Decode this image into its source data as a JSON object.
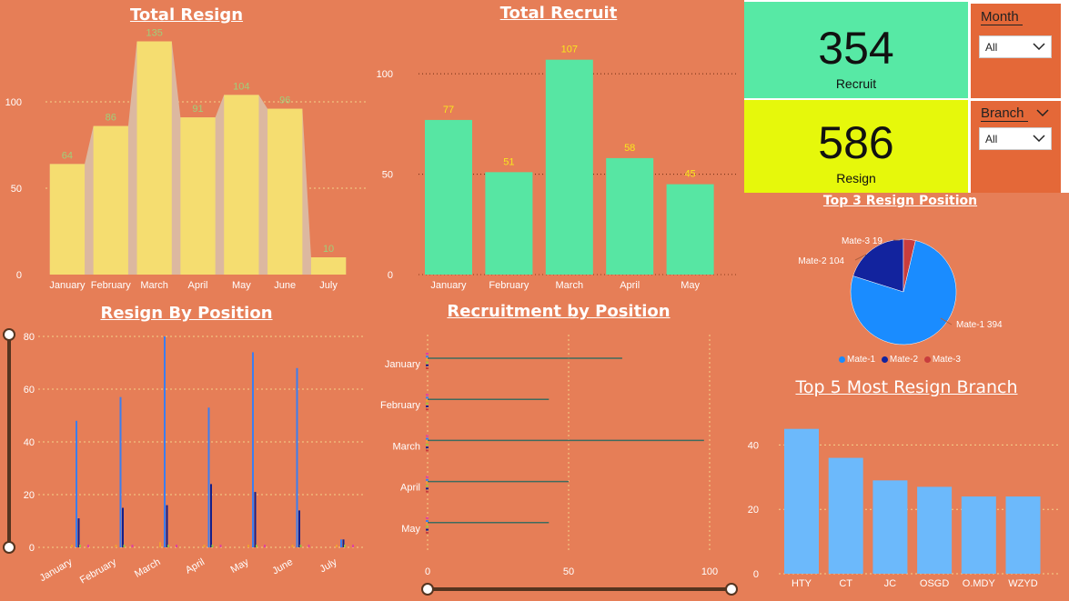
{
  "resign_title": "Total Resign",
  "recruit_title": "Total Recruit",
  "resign_position_title": "Resign By Position",
  "recruit_position_title": "Recruitment by Position",
  "pie_title": "Top 3 Resign Position",
  "branch_title": "Top 5 Most Resign Branch",
  "kpi": {
    "recruit_value": "354",
    "recruit_label": "Recruit",
    "resign_value": "586",
    "resign_label": "Resign"
  },
  "slicers": {
    "month_label": "Month",
    "month_value": "All",
    "branch_label": "Branch",
    "branch_value": "All"
  },
  "colors": {
    "panel": "#e67e57",
    "resign_bar": "#f5dd70",
    "recruit_bar": "#57e6a3",
    "branch_bar": "#6cb9fb",
    "kpi_recruit": "#57e9a5",
    "kpi_resign": "#e6f80b"
  },
  "chart_data": [
    {
      "id": "total_resign",
      "type": "bar",
      "title": "Total Resign",
      "categories": [
        "January",
        "February",
        "March",
        "April",
        "May",
        "June",
        "July"
      ],
      "values": [
        64,
        86,
        135,
        91,
        104,
        96,
        10
      ],
      "yticks": [
        0,
        50,
        100
      ],
      "ylim": [
        0,
        140
      ],
      "grid": true
    },
    {
      "id": "total_recruit",
      "type": "bar",
      "title": "Total Recruit",
      "categories": [
        "January",
        "February",
        "March",
        "April",
        "May"
      ],
      "values": [
        77,
        51,
        107,
        58,
        45
      ],
      "yticks": [
        0,
        50,
        100
      ],
      "ylim": [
        0,
        115
      ],
      "grid": true
    },
    {
      "id": "resign_by_position",
      "type": "bar",
      "title": "Resign By Position",
      "categories": [
        "January",
        "February",
        "March",
        "April",
        "May",
        "June",
        "July"
      ],
      "yticks": [
        0,
        20,
        40,
        60,
        80
      ],
      "ylim": [
        0,
        80
      ],
      "series": [
        {
          "values": [
            48,
            57,
            80,
            53,
            74,
            68,
            3
          ],
          "color": "#3c7ef0"
        },
        {
          "values": [
            11,
            15,
            16,
            24,
            21,
            14,
            3
          ],
          "color": "#15208a"
        },
        {
          "values": [
            1,
            1,
            2,
            1,
            1,
            1,
            1
          ],
          "color": "#f0a030"
        },
        {
          "values": [
            1,
            1,
            1,
            1,
            1,
            1,
            1
          ],
          "color": "#a0c040"
        },
        {
          "values": [
            1,
            1,
            1,
            1,
            1,
            1,
            1
          ],
          "color": "#e040a0"
        }
      ]
    },
    {
      "id": "recruitment_by_position",
      "type": "bar",
      "orientation": "horizontal",
      "title": "Recruitment by Position",
      "categories": [
        "January",
        "February",
        "March",
        "April",
        "May"
      ],
      "values": [
        69,
        43,
        98,
        50,
        43
      ],
      "xticks": [
        0,
        50,
        100
      ],
      "xlim": [
        0,
        100
      ]
    },
    {
      "id": "top3_resign_position",
      "type": "pie",
      "title": "Top 3 Resign Position",
      "labels": [
        "Mate-1",
        "Mate-2",
        "Mate-3"
      ],
      "values": [
        394,
        104,
        19
      ],
      "colors": [
        "#1a8cff",
        "#12239e",
        "#c83d3d"
      ],
      "legend": "bottom"
    },
    {
      "id": "top5_resign_branch",
      "type": "bar",
      "title": "Top 5 Most Resign Branch",
      "categories": [
        "HTY",
        "CT",
        "JC",
        "OSGD",
        "O.MDY",
        "WZYD"
      ],
      "values": [
        45,
        36,
        29,
        27,
        24,
        24
      ],
      "yticks": [
        0,
        20,
        40
      ],
      "ylim": [
        0,
        50
      ],
      "grid": true
    }
  ]
}
